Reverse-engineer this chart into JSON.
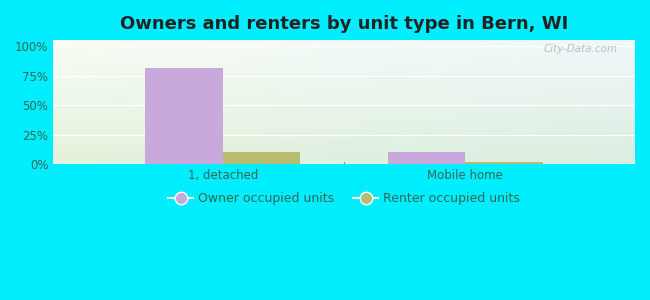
{
  "title": "Owners and renters by unit type in Bern, WI",
  "categories": [
    "1, detached",
    "Mobile home"
  ],
  "owner_values": [
    81,
    10
  ],
  "renter_values": [
    10,
    2
  ],
  "owner_color": "#c9a8dc",
  "renter_color": "#b8bc70",
  "yticks": [
    0,
    25,
    50,
    75,
    100
  ],
  "ytick_labels": [
    "0%",
    "25%",
    "50%",
    "75%",
    "100%"
  ],
  "ylim": [
    0,
    105
  ],
  "bar_width": 0.32,
  "background_outer": "#00eeff",
  "watermark": "City-Data.com",
  "legend_owner": "Owner occupied units",
  "legend_renter": "Renter occupied units",
  "title_fontsize": 13,
  "tick_fontsize": 8.5,
  "legend_fontsize": 9,
  "text_color": "#336655"
}
